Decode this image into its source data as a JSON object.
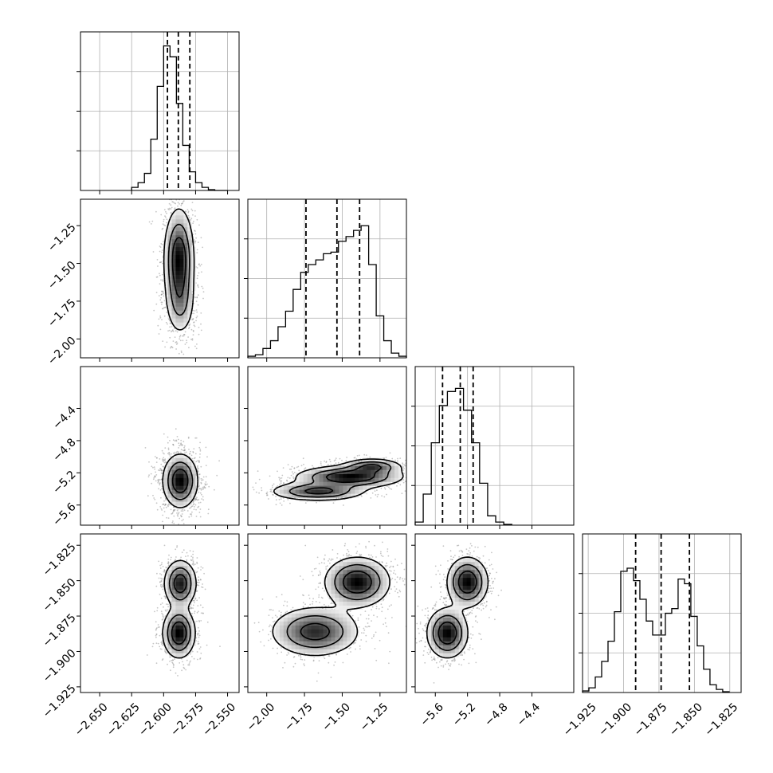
{
  "chart_data": {
    "type": "corner",
    "parameters": [
      {
        "range": [
          -2.665,
          -2.541
        ],
        "ticks": [
          -2.65,
          -2.625,
          -2.6,
          -2.575,
          -2.55
        ],
        "tick_labels": [
          "−2.650",
          "−2.625",
          "−2.600",
          "−2.575",
          "−2.550"
        ]
      },
      {
        "range": [
          -2.125,
          -1.075
        ],
        "ticks": [
          -2.0,
          -1.75,
          -1.5,
          -1.25
        ],
        "tick_labels": [
          "−2.00",
          "−1.75",
          "−1.50",
          "−1.25"
        ]
      },
      {
        "range": [
          -5.85,
          -3.88
        ],
        "ticks": [
          -5.6,
          -5.2,
          -4.8,
          -4.4
        ],
        "tick_labels": [
          "−5.6",
          "−5.2",
          "−4.8",
          "−4.4"
        ]
      },
      {
        "range": [
          -1.929,
          -1.817
        ],
        "ticks": [
          -1.925,
          -1.9,
          -1.875,
          -1.85,
          -1.825
        ],
        "tick_labels": [
          "−1.925",
          "−1.900",
          "−1.875",
          "−1.850",
          "−1.825"
        ]
      }
    ],
    "histograms": [
      {
        "edges": [
          -2.625,
          -2.62,
          -2.615,
          -2.61,
          -2.605,
          -2.6,
          -2.595,
          -2.59,
          -2.585,
          -2.58,
          -2.575,
          -2.57,
          -2.565,
          -2.56,
          -2.555,
          -2.55
        ],
        "counts": [
          0.02,
          0.05,
          0.11,
          0.33,
          0.67,
          0.93,
          0.86,
          0.56,
          0.29,
          0.12,
          0.05,
          0.02,
          0.005,
          0.0,
          0.0
        ],
        "quantiles": [
          -2.597,
          -2.5885,
          -2.5795
        ]
      },
      {
        "edges": [
          -2.125,
          -2.075,
          -2.025,
          -1.975,
          -1.925,
          -1.875,
          -1.825,
          -1.775,
          -1.725,
          -1.675,
          -1.625,
          -1.575,
          -1.525,
          -1.475,
          -1.425,
          -1.375,
          -1.325,
          -1.275,
          -1.225,
          -1.175,
          -1.125,
          -1.075
        ],
        "counts": [
          0.01,
          0.02,
          0.06,
          0.11,
          0.2,
          0.3,
          0.44,
          0.55,
          0.6,
          0.63,
          0.67,
          0.68,
          0.75,
          0.78,
          0.82,
          0.85,
          0.6,
          0.27,
          0.11,
          0.03,
          0.01
        ],
        "quantiles": [
          -1.74,
          -1.535,
          -1.385
        ]
      },
      {
        "edges": [
          -5.85,
          -5.75,
          -5.65,
          -5.55,
          -5.45,
          -5.35,
          -5.25,
          -5.15,
          -5.05,
          -4.95,
          -4.85,
          -4.75,
          -4.65
        ],
        "counts": [
          0.02,
          0.2,
          0.53,
          0.77,
          0.86,
          0.88,
          0.74,
          0.53,
          0.27,
          0.06,
          0.02,
          0.005
        ],
        "quantiles": [
          -5.51,
          -5.29,
          -5.13
        ]
      },
      {
        "edges": [
          -1.929,
          -1.9245,
          -1.92,
          -1.9155,
          -1.911,
          -1.9065,
          -1.902,
          -1.8975,
          -1.893,
          -1.8885,
          -1.884,
          -1.8795,
          -1.875,
          -1.8705,
          -1.866,
          -1.8615,
          -1.857,
          -1.8525,
          -1.848,
          -1.8435,
          -1.839,
          -1.8345,
          -1.83,
          -1.8255
        ],
        "counts": [
          0.01,
          0.03,
          0.1,
          0.2,
          0.33,
          0.52,
          0.78,
          0.8,
          0.72,
          0.6,
          0.46,
          0.37,
          0.37,
          0.51,
          0.54,
          0.73,
          0.7,
          0.49,
          0.3,
          0.15,
          0.05,
          0.02,
          0.005
        ],
        "quantiles": [
          -1.8915,
          -1.8735,
          -1.8535
        ]
      }
    ],
    "density_panels": [
      {
        "x_param": 0,
        "y_param": 1,
        "modes": [
          {
            "x": -2.588,
            "y": -1.47,
            "sx": 0.006,
            "sy": 0.17,
            "w": 1.0
          },
          {
            "x": -2.587,
            "y": -1.76,
            "sx": 0.006,
            "sy": 0.12,
            "w": 0.4
          }
        ],
        "contour_levels": [
          0.15,
          0.4,
          0.7
        ]
      },
      {
        "x_param": 0,
        "y_param": 2,
        "modes": [
          {
            "x": -2.587,
            "y": -5.3,
            "sx": 0.007,
            "sy": 0.17,
            "w": 1.0
          }
        ],
        "contour_levels": [
          0.15,
          0.4,
          0.7
        ]
      },
      {
        "x_param": 1,
        "y_param": 2,
        "modes": [
          {
            "x": -1.45,
            "y": -5.25,
            "sx": 0.18,
            "sy": 0.07,
            "w": 1.0
          },
          {
            "x": -1.66,
            "y": -5.43,
            "sx": 0.16,
            "sy": 0.06,
            "w": 0.8
          },
          {
            "x": -1.3,
            "y": -5.12,
            "sx": 0.1,
            "sy": 0.05,
            "w": 0.7
          }
        ],
        "contour_levels": [
          0.15,
          0.4,
          0.7
        ]
      },
      {
        "x_param": 0,
        "y_param": 3,
        "modes": [
          {
            "x": -2.587,
            "y": -1.852,
            "sx": 0.0065,
            "sy": 0.0085,
            "w": 0.9
          },
          {
            "x": -2.588,
            "y": -1.887,
            "sx": 0.0065,
            "sy": 0.009,
            "w": 1.0
          }
        ],
        "contour_levels": [
          0.15,
          0.4,
          0.7
        ]
      },
      {
        "x_param": 1,
        "y_param": 3,
        "modes": [
          {
            "x": -1.4,
            "y": -1.851,
            "sx": 0.11,
            "sy": 0.009,
            "w": 1.0
          },
          {
            "x": -1.68,
            "y": -1.886,
            "sx": 0.15,
            "sy": 0.009,
            "w": 0.85
          }
        ],
        "contour_levels": [
          0.15,
          0.4,
          0.7
        ]
      },
      {
        "x_param": 2,
        "y_param": 3,
        "modes": [
          {
            "x": -5.2,
            "y": -1.851,
            "sx": 0.13,
            "sy": 0.009,
            "w": 1.0
          },
          {
            "x": -5.45,
            "y": -1.887,
            "sx": 0.13,
            "sy": 0.009,
            "w": 1.0
          }
        ],
        "contour_levels": [
          0.15,
          0.4,
          0.7
        ]
      }
    ]
  }
}
